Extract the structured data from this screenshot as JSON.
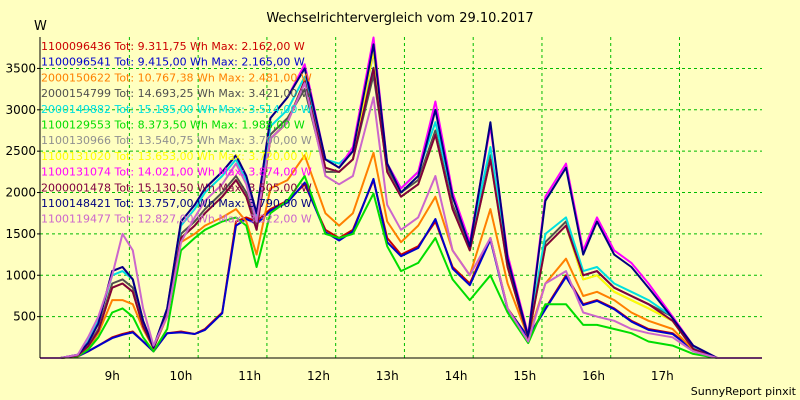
{
  "chart_data": {
    "type": "line",
    "title": "Wechselrichtervergleich vom 29.10.2017",
    "ylabel": "W",
    "footer": "SunnyReport pinxit",
    "x_tick_labels": [
      "9h",
      "10h",
      "11h",
      "12h",
      "13h",
      "14h",
      "15h",
      "16h",
      "17h"
    ],
    "x_ticks": [
      9,
      10,
      11,
      12,
      13,
      14,
      15,
      16,
      17
    ],
    "y_ticks": [
      500,
      1000,
      1500,
      2000,
      2500,
      3000,
      3500
    ],
    "xlim": [
      7.95,
      18.45
    ],
    "ylim": [
      0,
      3880
    ],
    "grid": true,
    "legend_position": "top-left",
    "x": [
      7.95,
      8.25,
      8.5,
      8.65,
      8.8,
      9.0,
      9.15,
      9.3,
      9.45,
      9.6,
      9.8,
      10.0,
      10.2,
      10.35,
      10.6,
      10.8,
      10.95,
      11.1,
      11.3,
      11.55,
      11.8,
      12.1,
      12.3,
      12.5,
      12.8,
      13.0,
      13.2,
      13.45,
      13.7,
      13.95,
      14.2,
      14.5,
      14.75,
      15.05,
      15.3,
      15.6,
      15.85,
      16.05,
      16.3,
      16.55,
      16.8,
      17.15,
      17.45,
      17.8,
      18.45
    ],
    "series": [
      {
        "name": "1100096436 Tot: 9.311,75 Wh Max: 2.162,00 W",
        "color": "#cc0000",
        "values": [
          0,
          0,
          20,
          80,
          150,
          250,
          290,
          320,
          200,
          80,
          300,
          320,
          290,
          350,
          550,
          1650,
          1700,
          1650,
          1800,
          1900,
          2100,
          1550,
          1450,
          1550,
          2150,
          1450,
          1250,
          1350,
          1650,
          1100,
          900,
          1450,
          600,
          250,
          600,
          1000,
          650,
          700,
          600,
          450,
          350,
          300,
          100,
          0,
          0
        ]
      },
      {
        "name": "1100096541 Tot: 9.415,00 Wh Max: 2.165,00 W",
        "color": "#0000cc",
        "values": [
          0,
          0,
          20,
          80,
          150,
          240,
          280,
          310,
          200,
          80,
          300,
          310,
          290,
          340,
          540,
          1600,
          1680,
          1620,
          1780,
          1880,
          2120,
          1520,
          1420,
          1530,
          2165,
          1400,
          1230,
          1330,
          1680,
          1080,
          880,
          1430,
          590,
          250,
          590,
          980,
          640,
          690,
          590,
          440,
          340,
          290,
          100,
          0,
          0
        ]
      },
      {
        "name": "2000150622 Tot: 10.767,38 Wh Max: 2.481,00 W",
        "color": "#ff8000",
        "values": [
          0,
          0,
          20,
          120,
          300,
          700,
          700,
          650,
          350,
          120,
          500,
          1400,
          1500,
          1600,
          1700,
          1800,
          1650,
          1250,
          2050,
          2150,
          2450,
          1750,
          1600,
          1750,
          2480,
          1650,
          1400,
          1600,
          1950,
          1300,
          1000,
          1800,
          900,
          250,
          900,
          1200,
          750,
          800,
          700,
          550,
          450,
          350,
          100,
          0,
          0
        ]
      },
      {
        "name": "2000154799 Tot: 14.693,25 Wh Max: 3.421,00 W",
        "color": "#505050",
        "values": [
          0,
          0,
          30,
          150,
          350,
          900,
          950,
          850,
          400,
          120,
          550,
          1500,
          1650,
          1800,
          2000,
          2200,
          2000,
          1600,
          2700,
          2900,
          3250,
          2250,
          2250,
          2400,
          3420,
          2300,
          2000,
          2150,
          2750,
          1850,
          1350,
          2450,
          1150,
          250,
          1400,
          1650,
          1000,
          1050,
          850,
          750,
          650,
          500,
          120,
          0,
          0
        ]
      },
      {
        "name": "2000149882 Tot: 15.185,00 Wh Max: 3.514,00 W",
        "color": "#00e0e0",
        "values": [
          0,
          0,
          40,
          200,
          450,
          1000,
          1050,
          950,
          450,
          130,
          600,
          1600,
          1800,
          2000,
          2200,
          2400,
          2150,
          1700,
          2800,
          3000,
          3400,
          2400,
          2350,
          2500,
          3510,
          2350,
          2050,
          2250,
          2850,
          1950,
          1400,
          2550,
          1200,
          250,
          1500,
          1700,
          1050,
          1100,
          900,
          800,
          700,
          500,
          120,
          0,
          0
        ]
      },
      {
        "name": "1100129553 Tot: 8.373,50 Wh Max: 1.988,00 W",
        "color": "#00dd00",
        "values": [
          0,
          0,
          20,
          100,
          250,
          550,
          600,
          500,
          250,
          80,
          350,
          1300,
          1450,
          1550,
          1650,
          1700,
          1600,
          1100,
          1750,
          1900,
          2200,
          1500,
          1450,
          1500,
          1988,
          1350,
          1050,
          1150,
          1450,
          950,
          700,
          1000,
          550,
          180,
          650,
          650,
          400,
          400,
          350,
          300,
          200,
          150,
          50,
          0,
          0
        ]
      },
      {
        "name": "1100130966 Tot: 13.540,75 Wh Max: 3.700,00 W",
        "color": "#909090",
        "values": [
          0,
          0,
          30,
          140,
          330,
          850,
          900,
          800,
          380,
          120,
          520,
          1450,
          1600,
          1750,
          1950,
          2150,
          1950,
          1550,
          2650,
          2850,
          3350,
          2300,
          2250,
          2400,
          3700,
          2250,
          1950,
          2100,
          2700,
          1800,
          1300,
          2400,
          1100,
          240,
          1350,
          1600,
          950,
          1000,
          800,
          700,
          600,
          450,
          110,
          0,
          0
        ]
      },
      {
        "name": "1100131020 Tot: 13.653,00 Wh Max: 3.720,00 W",
        "color": "#ffff00",
        "values": [
          0,
          0,
          30,
          140,
          330,
          850,
          900,
          800,
          380,
          120,
          520,
          1450,
          1600,
          1750,
          1950,
          2150,
          1950,
          1550,
          2650,
          2850,
          3350,
          2300,
          2250,
          2400,
          3720,
          2250,
          1950,
          2100,
          2700,
          1800,
          1300,
          2400,
          1100,
          240,
          1350,
          1600,
          950,
          1000,
          800,
          700,
          600,
          450,
          110,
          0,
          0
        ]
      },
      {
        "name": "1100131074 Tot: 14.021,00 Wh Max: 3.874,00 W",
        "color": "#ff00ff",
        "values": [
          0,
          0,
          40,
          180,
          420,
          1050,
          1100,
          950,
          450,
          130,
          600,
          1650,
          1850,
          2050,
          2250,
          2450,
          2200,
          1750,
          2900,
          3150,
          3550,
          2400,
          2300,
          2550,
          3874,
          2350,
          2050,
          2250,
          3100,
          2000,
          1400,
          2800,
          1250,
          280,
          1950,
          2350,
          1300,
          1700,
          1300,
          1150,
          900,
          500,
          150,
          0,
          0
        ]
      },
      {
        "name": "2000001478 Tot: 15.130,50 Wh Max: 3.505,00 W",
        "color": "#800040",
        "values": [
          0,
          0,
          30,
          140,
          330,
          850,
          900,
          800,
          380,
          120,
          520,
          1450,
          1600,
          1750,
          1950,
          2150,
          1950,
          1550,
          2650,
          2850,
          3350,
          2300,
          2250,
          2400,
          3505,
          2250,
          1950,
          2100,
          2700,
          1800,
          1300,
          2400,
          1100,
          240,
          1350,
          1600,
          1000,
          1050,
          850,
          750,
          650,
          450,
          110,
          0,
          0
        ]
      },
      {
        "name": "1100148421 Tot: 13.757,00 Wh Max: 3.790,00 W",
        "color": "#000080",
        "values": [
          0,
          0,
          40,
          180,
          420,
          1050,
          1100,
          950,
          450,
          130,
          600,
          1650,
          1850,
          2050,
          2250,
          2450,
          2200,
          1750,
          2900,
          3150,
          3500,
          2400,
          2300,
          2500,
          3790,
          2350,
          2000,
          2200,
          3000,
          1950,
          1350,
          2850,
          1200,
          260,
          1900,
          2300,
          1250,
          1650,
          1250,
          1100,
          850,
          480,
          150,
          0,
          0
        ]
      },
      {
        "name": "1100119477 Tot: 12.827,00 Wh Max: 3.322,00 W",
        "color": "#cc66cc",
        "values": [
          0,
          0,
          40,
          250,
          500,
          1000,
          1500,
          1300,
          600,
          150,
          500,
          1400,
          1700,
          1900,
          2100,
          2350,
          2100,
          1650,
          2650,
          2850,
          3322,
          2200,
          2100,
          2200,
          3150,
          1850,
          1550,
          1700,
          2200,
          1300,
          1000,
          1450,
          600,
          200,
          900,
          1050,
          550,
          500,
          450,
          350,
          300,
          250,
          80,
          0,
          0
        ]
      }
    ]
  }
}
